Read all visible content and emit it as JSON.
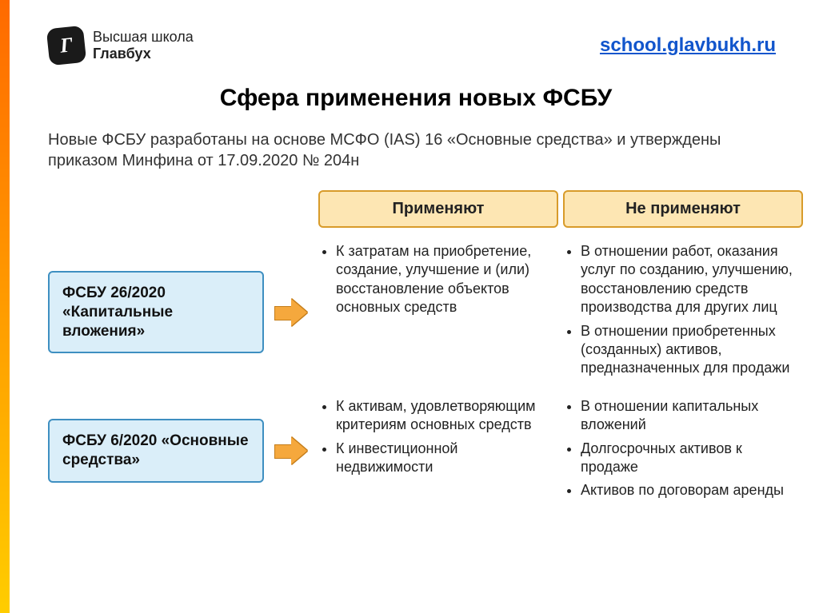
{
  "logo": {
    "icon_letter": "Г",
    "line1": "Высшая школа",
    "line2": "Главбух"
  },
  "url": "school.glavbukh.ru",
  "title": "Сфера применения новых ФСБУ",
  "intro": "Новые ФСБУ разработаны на основе МСФО (IAS) 16 «Основные средства» и утверждены приказом Минфина от 17.09.2020 № 204н",
  "headers": {
    "apply": "Применяют",
    "not_apply": "Не применяют"
  },
  "rows": [
    {
      "left": "ФСБУ 26/2020 «Капитальные вложения»",
      "apply": [
        "К затратам на приобретение, создание, улучшение и (или) восстановление объектов основных средств"
      ],
      "not_apply": [
        "В отношении работ, оказания услуг по созданию, улучшению, восстановлению средств производства для других лиц",
        "В отношении приобретенных (созданных) активов, предназначенных для продажи"
      ]
    },
    {
      "left": "ФСБУ 6/2020 «Основные средства»",
      "apply": [
        "К активам, удовлетворяющим критериям основных средств",
        "К инвестиционной недвижимости"
      ],
      "not_apply": [
        "В отношении капитальных вложений",
        "Долгосрочных активов к продаже",
        "Активов по договорам аренды"
      ]
    }
  ],
  "colors": {
    "accent_top": "#ff6a00",
    "accent_bottom": "#ffcd00",
    "header_fill": "#fde6b3",
    "header_border": "#d89b2a",
    "leftbox_fill": "#daeef9",
    "leftbox_border": "#3e8fc1",
    "arrow_fill": "#f5a83d",
    "arrow_border": "#c47d1a",
    "url_color": "#1155cc"
  }
}
